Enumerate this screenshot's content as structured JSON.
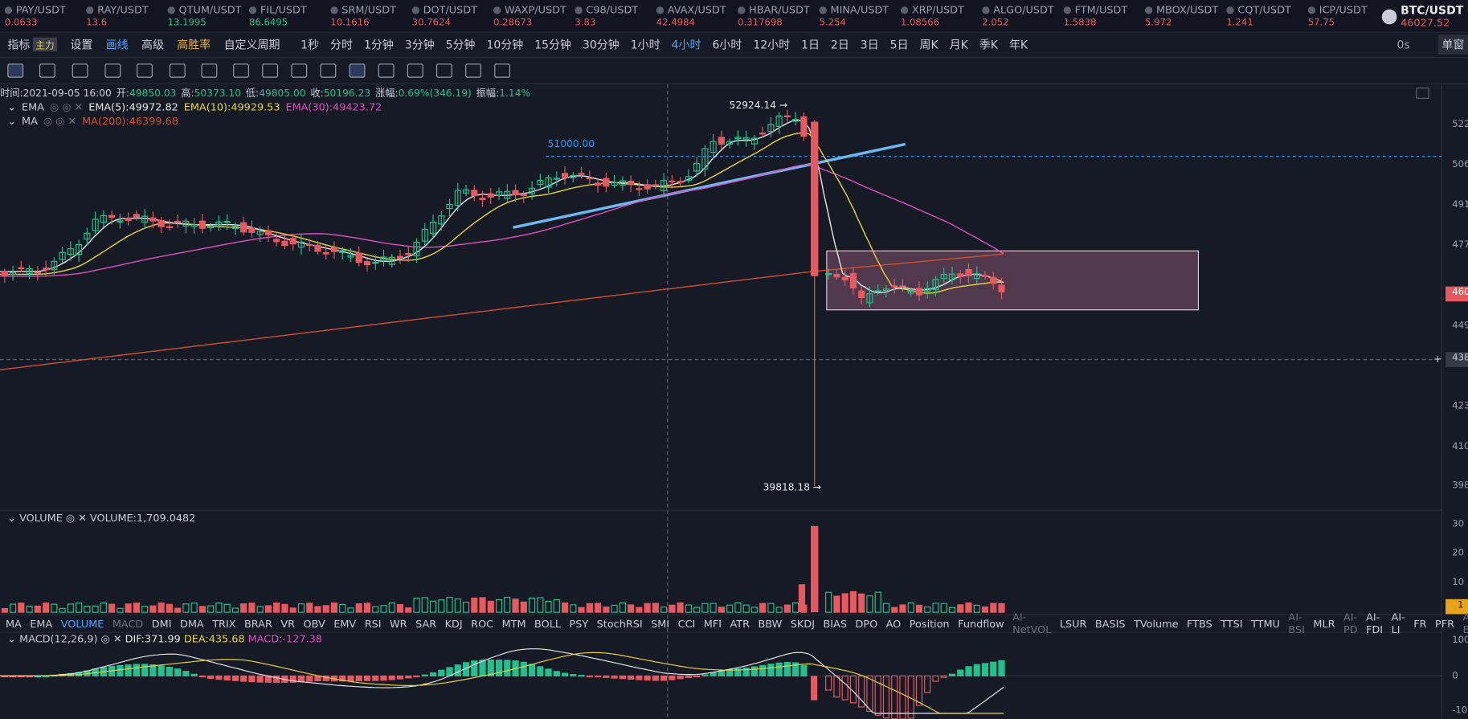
{
  "tickers": [
    {
      "name": "PAY/USDT",
      "price": "0.0633",
      "color": "#e9585f"
    },
    {
      "name": "RAY/USDT",
      "price": "13.6",
      "color": "#e9585f"
    },
    {
      "name": "QTUM/USDT",
      "price": "13.1995",
      "color": "#22c08f"
    },
    {
      "name": "FIL/USDT",
      "price": "86.6495",
      "color": "#22c08f"
    },
    {
      "name": "SRM/USDT",
      "price": "10.1616",
      "color": "#e9585f"
    },
    {
      "name": "DOT/USDT",
      "price": "30.7624",
      "color": "#e9585f"
    },
    {
      "name": "WAXP/USDT",
      "price": "0.28673",
      "color": "#e9585f"
    },
    {
      "name": "C98/USDT",
      "price": "3.83",
      "color": "#e9585f"
    },
    {
      "name": "AVAX/USDT",
      "price": "42.4984",
      "color": "#e9585f"
    },
    {
      "name": "HBAR/USDT",
      "price": "0.317698",
      "color": "#e9585f"
    },
    {
      "name": "MINA/USDT",
      "price": "5.254",
      "color": "#e9585f"
    },
    {
      "name": "XRP/USDT",
      "price": "1.08566",
      "color": "#e9585f"
    },
    {
      "name": "ALGO/USDT",
      "price": "2.052",
      "color": "#e9585f"
    },
    {
      "name": "FTM/USDT",
      "price": "1.5838",
      "color": "#e9585f"
    },
    {
      "name": "MBOX/USDT",
      "price": "5.972",
      "color": "#e9585f"
    },
    {
      "name": "CQT/USDT",
      "price": "1.241",
      "color": "#e9585f"
    },
    {
      "name": "ICP/USDT",
      "price": "57.75",
      "color": "#e9585f"
    }
  ],
  "symbol": {
    "name": "BTC/USDT",
    "price": "46027.52"
  },
  "toolbar": {
    "items": [
      "指标",
      "主力",
      "设置",
      "画线",
      "高级",
      "高胜率",
      "自定义周期"
    ],
    "periods": [
      "1秒",
      "分时",
      "1分钟",
      "3分钟",
      "5分钟",
      "10分钟",
      "15分钟",
      "30分钟",
      "1小时",
      "4小时",
      "6小时",
      "12小时",
      "1日",
      "2日",
      "3日",
      "5日",
      "周K",
      "月K",
      "季K",
      "年K"
    ],
    "active_period": "4小时",
    "right": [
      "0s",
      "单窗"
    ]
  },
  "info": {
    "time": "时间:2021-09-05 16:00",
    "fields": [
      {
        "label": "开:",
        "value": "49850.03"
      },
      {
        "label": "高:",
        "value": "50373.10"
      },
      {
        "label": "低:",
        "value": "49805.00"
      },
      {
        "label": "收:",
        "value": "50196.23"
      },
      {
        "label": "涨幅:",
        "value": "0.69%(346.19)"
      },
      {
        "label": "振幅:",
        "value": "1.14%"
      }
    ]
  },
  "ema": {
    "name": "EMA",
    "values": [
      {
        "text": "EMA(5):49972.82",
        "color": "#e6e6e6"
      },
      {
        "text": "EMA(10):49929.53",
        "color": "#e8d43c"
      },
      {
        "text": "EMA(30):49423.72",
        "color": "#e04fc0"
      }
    ]
  },
  "ma": {
    "name": "MA",
    "values": [
      {
        "text": "MA(200):46399.68",
        "color": "#d2502c"
      }
    ]
  },
  "annotations": {
    "high": "52924.14 →",
    "line": "51000.00",
    "low": "39818.18 →"
  },
  "price_axis": [
    "522",
    "506",
    "491",
    "477",
    "449",
    "423",
    "410",
    "398"
  ],
  "price_tag": "460",
  "crosshair_tag": "438",
  "volume": {
    "name": "VOLUME",
    "value": "VOLUME:1,709.0482",
    "axis": [
      "30",
      "20",
      "10"
    ],
    "tag": "1"
  },
  "tabs": [
    "MA",
    "EMA",
    "VOLUME",
    "MACD",
    "DMI",
    "DMA",
    "TRIX",
    "BRAR",
    "VR",
    "OBV",
    "EMV",
    "RSI",
    "WR",
    "SAR",
    "KDJ",
    "ROC",
    "MTM",
    "BOLL",
    "PSY",
    "StochRSI",
    "SMI",
    "CCI",
    "MFI",
    "ATR",
    "BBW",
    "SKDJ",
    "BIAS",
    "DPO",
    "AO",
    "Position",
    "Fundflow",
    "AI-NetVOL",
    "LSUR",
    "BASIS",
    "TVolume",
    "FTBS",
    "TTSI",
    "TTMU",
    "AI-BSI",
    "MLR",
    "AI-PD",
    "AI-FDI",
    "AI-LI",
    "FR",
    "PFR",
    "AI-BST"
  ],
  "macd": {
    "name": "MACD(12,26,9)",
    "dif": "DIF:371.99",
    "dea": "DEA:435.68",
    "macd": "MACD:-127.38",
    "axis": [
      "100",
      "0",
      "-10"
    ]
  }
}
